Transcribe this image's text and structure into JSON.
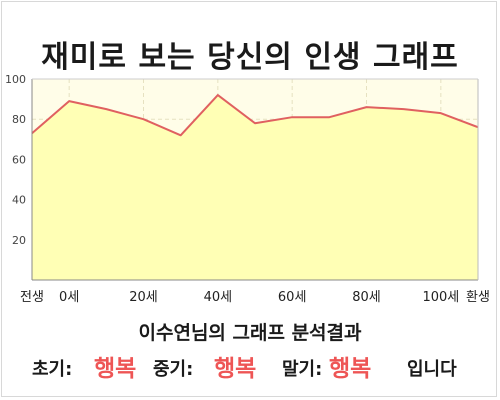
{
  "title": "재미로 보는 당신의 인생 그래프",
  "analysis_title": "이수연님의 그래프 분석결과",
  "results": {
    "early_label": "초기:",
    "early_value": "행복",
    "mid_label": "중기:",
    "mid_value": "행복",
    "late_label": "말기:",
    "late_value": "행복",
    "suffix": "입니다"
  },
  "colors": {
    "line": "#e06060",
    "fill": "#ffffb5",
    "plot_bg": "#fffde8",
    "grid": "#e6e1c0",
    "accent_text": "#ee5555"
  },
  "chart_data": {
    "type": "area",
    "title": "재미로 보는 당신의 인생 그래프",
    "xlabel": "",
    "ylabel": "",
    "x_ticks": [
      "전생",
      "0세",
      "20세",
      "40세",
      "60세",
      "80세",
      "100세",
      "환생"
    ],
    "x": [
      "전생",
      "0세",
      "10세",
      "20세",
      "30세",
      "40세",
      "50세",
      "60세",
      "70세",
      "80세",
      "90세",
      "100세",
      "환생"
    ],
    "values": [
      73,
      89,
      85,
      80,
      72,
      92,
      78,
      81,
      81,
      86,
      85,
      83,
      76
    ],
    "ylim": [
      0,
      100
    ],
    "y_ticks": [
      20,
      40,
      60,
      80,
      100
    ],
    "grid": true,
    "legend": "none"
  }
}
